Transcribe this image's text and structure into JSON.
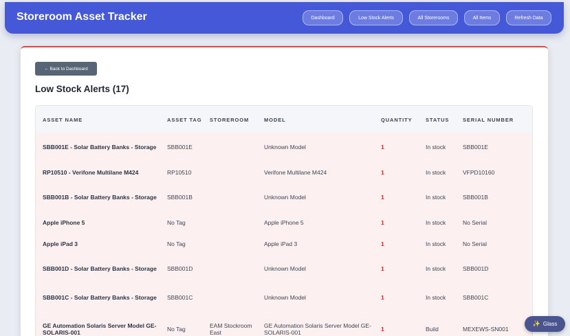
{
  "header": {
    "title": "Storeroom Asset Tracker",
    "nav": [
      "Dashboard",
      "Low Stock Alerts",
      "All Storerooms",
      "All Items",
      "Refresh Data"
    ]
  },
  "main": {
    "back_label": "← Back to Dashboard",
    "page_title": "Low Stock Alerts (17)",
    "columns": [
      "Asset Name",
      "Asset Tag",
      "Storeroom",
      "Model",
      "Quantity",
      "Status",
      "Serial Number"
    ],
    "rows": [
      {
        "name": "SBB001E - Solar Battery Banks - Storage",
        "tag": "SBB001E",
        "storeroom": "",
        "model": "Unknown Model",
        "qty": "1",
        "status": "In stock",
        "serial": "SBB001E"
      },
      {
        "name": "RP10510 - Verifone Multilane M424",
        "tag": "RP10510",
        "storeroom": "",
        "model": "Verifone Multilane M424",
        "qty": "1",
        "status": "In stock",
        "serial": "VFPD10160"
      },
      {
        "name": "SBB001B - Solar Battery Banks - Storage",
        "tag": "SBB001B",
        "storeroom": "",
        "model": "Unknown Model",
        "qty": "1",
        "status": "In stock",
        "serial": "SBB001B"
      },
      {
        "name": "Apple iPhone 5",
        "tag": "No Tag",
        "storeroom": "",
        "model": "Apple iPhone 5",
        "qty": "1",
        "status": "In stock",
        "serial": "No Serial"
      },
      {
        "name": "Apple iPad 3",
        "tag": "No Tag",
        "storeroom": "",
        "model": "Apple iPad 3",
        "qty": "1",
        "status": "In stock",
        "serial": "No Serial"
      },
      {
        "name": "SBB001D - Solar Battery Banks - Storage",
        "tag": "SBB001D",
        "storeroom": "",
        "model": "Unknown Model",
        "qty": "1",
        "status": "In stock",
        "serial": "SBB001D"
      },
      {
        "name": "SBB001C - Solar Battery Banks - Storage",
        "tag": "SBB001C",
        "storeroom": "",
        "model": "Unknown Model",
        "qty": "1",
        "status": "In stock",
        "serial": "SBB001C"
      },
      {
        "name": "GE Automation Solaris Server Model GE-SOLARIS-001",
        "tag": "No Tag",
        "storeroom": "EAM Stockroom East",
        "model": "GE Automation Solaris Server Model GE-SOLARIS-001",
        "qty": "1",
        "status": "Build",
        "serial": "MEXEWS-SN001"
      }
    ]
  },
  "glass_button": {
    "label": "Glass",
    "icon": "sparkle-icon"
  }
}
